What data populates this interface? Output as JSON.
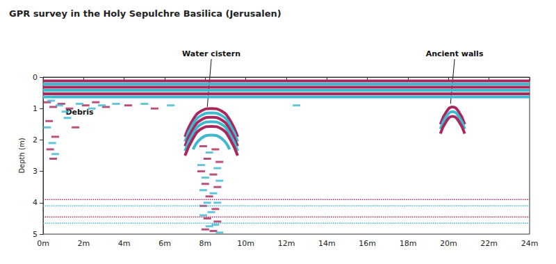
{
  "chart_data": {
    "type": "line",
    "title": "GPR survey in the Holy Sepulchre Basilica (Jerusalen)",
    "ylabel": "Depth (m)",
    "xlim": [
      0,
      24
    ],
    "xticks": [
      {
        "value": 0,
        "label": "0m"
      },
      {
        "value": 2,
        "label": "2m"
      },
      {
        "value": 4,
        "label": "4m"
      },
      {
        "value": 6,
        "label": "6m"
      },
      {
        "value": 8,
        "label": "8m"
      },
      {
        "value": 10,
        "label": "10m"
      },
      {
        "value": 12,
        "label": "12m"
      },
      {
        "value": 14,
        "label": "14m"
      },
      {
        "value": 16,
        "label": "16m"
      },
      {
        "value": 18,
        "label": "18m"
      },
      {
        "value": 20,
        "label": "20m"
      },
      {
        "value": 22,
        "label": "22m"
      },
      {
        "value": 24,
        "label": "24m"
      }
    ],
    "ylim": [
      0,
      5
    ],
    "yticks": [
      0,
      1,
      2,
      3,
      4,
      5
    ],
    "grid": false,
    "annotations": [
      {
        "text": "Water cistern",
        "x": 8.3,
        "y": -0.75,
        "point_x": 8.1,
        "point_y": 0.95
      },
      {
        "text": "Ancient walls",
        "x": 20.3,
        "y": -0.75,
        "point_x": 20.1,
        "point_y": 0.85
      },
      {
        "text": "Debris",
        "x": 1.8,
        "y": 1.12
      }
    ],
    "series": [
      {
        "type": "line",
        "line_style": "solid",
        "color": "#a8285e",
        "x": [
          0,
          24
        ],
        "values": [
          0.12,
          0.12
        ]
      },
      {
        "type": "line",
        "line_style": "solid",
        "color": "#3fb8d0",
        "x": [
          0,
          24
        ],
        "values": [
          0.22,
          0.22
        ]
      },
      {
        "type": "line",
        "line_style": "solid",
        "color": "#a8285e",
        "x": [
          0,
          24
        ],
        "values": [
          0.32,
          0.32
        ]
      },
      {
        "type": "line",
        "line_style": "solid",
        "color": "#3fb8d0",
        "x": [
          0,
          24
        ],
        "values": [
          0.42,
          0.42
        ]
      },
      {
        "type": "line",
        "line_style": "solid",
        "color": "#a8285e",
        "x": [
          0,
          24
        ],
        "values": [
          0.53,
          0.53
        ]
      },
      {
        "type": "line",
        "line_style": "solid",
        "color": "#3fb8d0",
        "x": [
          0,
          24
        ],
        "values": [
          0.63,
          0.63
        ]
      },
      {
        "type": "line",
        "line_style": "solid",
        "color": "#a8285e",
        "x": [
          7.0,
          7.4,
          7.8,
          8.3,
          8.8,
          9.2,
          9.6
        ],
        "values": [
          1.9,
          1.35,
          1.08,
          1.0,
          1.08,
          1.35,
          1.9
        ]
      },
      {
        "type": "line",
        "line_style": "solid",
        "color": "#3fb8d0",
        "x": [
          7.0,
          7.4,
          7.8,
          8.3,
          8.8,
          9.2,
          9.6
        ],
        "values": [
          2.05,
          1.5,
          1.22,
          1.14,
          1.22,
          1.5,
          2.05
        ]
      },
      {
        "type": "line",
        "line_style": "solid",
        "color": "#a8285e",
        "x": [
          7.0,
          7.4,
          7.8,
          8.3,
          8.8,
          9.2,
          9.6
        ],
        "values": [
          2.2,
          1.65,
          1.36,
          1.28,
          1.36,
          1.65,
          2.2
        ]
      },
      {
        "type": "line",
        "line_style": "solid",
        "color": "#3fb8d0",
        "x": [
          7.0,
          7.4,
          7.8,
          8.3,
          8.8,
          9.2,
          9.6
        ],
        "values": [
          2.35,
          1.8,
          1.5,
          1.42,
          1.5,
          1.8,
          2.35
        ]
      },
      {
        "type": "line",
        "line_style": "solid",
        "color": "#a8285e",
        "x": [
          7.0,
          7.4,
          7.8,
          8.3,
          8.8,
          9.2,
          9.6
        ],
        "values": [
          2.5,
          1.95,
          1.65,
          1.57,
          1.65,
          1.95,
          2.5
        ]
      },
      {
        "type": "line",
        "line_style": "solid",
        "color": "#3fb8d0",
        "x": [
          7.4,
          7.8,
          8.3,
          8.8,
          9.2
        ],
        "values": [
          2.3,
          1.95,
          1.85,
          1.95,
          2.3
        ]
      },
      {
        "type": "scatter",
        "marker": "rect",
        "color": "#a8285e",
        "x": [
          7.9,
          8.5,
          8.1,
          8.7,
          7.8,
          8.4,
          8.0,
          8.6,
          8.2,
          7.9,
          8.5,
          8.1,
          8.6,
          8.0,
          8.4
        ],
        "values": [
          2.2,
          2.3,
          2.6,
          2.7,
          3.0,
          3.1,
          3.4,
          3.5,
          3.8,
          4.1,
          4.2,
          4.5,
          4.6,
          4.85,
          4.9
        ]
      },
      {
        "type": "scatter",
        "marker": "rect",
        "color": "#3fb8d0",
        "x": [
          8.2,
          7.8,
          8.6,
          8.0,
          8.7,
          7.9,
          8.4,
          8.1,
          8.6,
          8.3,
          7.9,
          8.5,
          8.2,
          8.7
        ],
        "values": [
          2.4,
          2.8,
          2.9,
          3.2,
          3.3,
          3.6,
          3.7,
          4.0,
          4.0,
          4.3,
          4.4,
          4.7,
          4.75,
          4.95
        ]
      },
      {
        "type": "line",
        "line_style": "solid",
        "color": "#a8285e",
        "x": [
          19.6,
          19.9,
          20.2,
          20.5,
          20.8
        ],
        "values": [
          1.5,
          1.1,
          0.95,
          1.1,
          1.5
        ]
      },
      {
        "type": "line",
        "line_style": "solid",
        "color": "#3fb8d0",
        "x": [
          19.6,
          19.9,
          20.2,
          20.5,
          20.8
        ],
        "values": [
          1.65,
          1.25,
          1.1,
          1.25,
          1.65
        ]
      },
      {
        "type": "line",
        "line_style": "solid",
        "color": "#a8285e",
        "x": [
          19.6,
          19.9,
          20.2,
          20.5,
          20.8
        ],
        "values": [
          1.8,
          1.4,
          1.25,
          1.4,
          1.8
        ]
      },
      {
        "type": "scatter",
        "marker": "rect",
        "color": "#a8285e",
        "x": [
          0.2,
          0.5,
          0.9,
          1.3,
          2.1,
          2.6,
          3.1,
          0.3,
          0.6,
          0.35,
          0.5,
          1.6,
          4.2,
          5.5
        ],
        "values": [
          0.8,
          0.95,
          0.85,
          1.0,
          0.9,
          0.8,
          0.95,
          1.4,
          1.9,
          2.3,
          2.6,
          1.6,
          0.9,
          1.0
        ]
      },
      {
        "type": "scatter",
        "marker": "rect",
        "color": "#3fb8d0",
        "x": [
          0.4,
          0.8,
          1.1,
          1.8,
          2.4,
          2.9,
          3.6,
          0.2,
          0.45,
          0.6,
          1.2,
          5.0,
          6.3,
          12.5
        ],
        "values": [
          0.75,
          0.9,
          1.1,
          0.85,
          1.0,
          0.9,
          0.85,
          1.6,
          2.1,
          2.45,
          1.3,
          0.85,
          0.9,
          0.9
        ]
      },
      {
        "type": "line",
        "line_style": "dotted",
        "color": "#a8285e",
        "x": [
          0,
          24
        ],
        "values": [
          3.9,
          3.9
        ]
      },
      {
        "type": "line",
        "line_style": "dotted",
        "color": "#3fb8d0",
        "x": [
          0,
          24
        ],
        "values": [
          4.1,
          4.1
        ]
      },
      {
        "type": "line",
        "line_style": "dotted",
        "color": "#a8285e",
        "x": [
          0,
          24
        ],
        "values": [
          4.45,
          4.45
        ]
      },
      {
        "type": "line",
        "line_style": "dotted",
        "color": "#3fb8d0",
        "x": [
          0,
          24
        ],
        "values": [
          4.65,
          4.65
        ]
      }
    ]
  }
}
